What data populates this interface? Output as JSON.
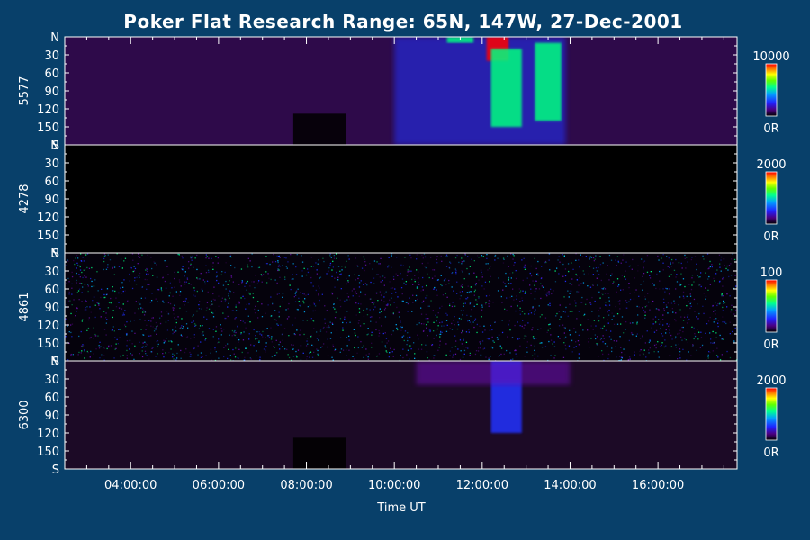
{
  "chart_data": {
    "type": "heatmap",
    "title": "Poker Flat Research Range: 65N, 147W, 27-Dec-2001",
    "xlabel": "Time UT",
    "x_tick_labels": [
      "04:00:00",
      "06:00:00",
      "08:00:00",
      "10:00:00",
      "12:00:00",
      "14:00:00",
      "16:00:00"
    ],
    "x_tick_hours": [
      4,
      6,
      8,
      10,
      12,
      14,
      16
    ],
    "x_range_hours": [
      2.5,
      17.8
    ],
    "y_tick_labels": [
      "N",
      "30",
      "60",
      "90",
      "120",
      "150",
      "S"
    ],
    "y_tick_values": [
      0,
      30,
      60,
      90,
      120,
      150,
      180
    ],
    "y_range": [
      0,
      180
    ],
    "colorscale": [
      "#000000",
      "#3a005a",
      "#6a10b0",
      "#2030ff",
      "#00b0ff",
      "#00ff80",
      "#b0ff00",
      "#ffff00",
      "#ff8000",
      "#ff0000"
    ],
    "panels": [
      {
        "label": "5577",
        "cb_max_label": "10000",
        "cb_min_label": "0R",
        "background": "#2e0a4a",
        "features": [
          {
            "t0": 7.7,
            "t1": 8.9,
            "y0": 128,
            "y1": 180,
            "intensity": 0.0,
            "kind": "dark-block"
          },
          {
            "t0": 10.0,
            "t1": 13.9,
            "y0": 0,
            "y1": 180,
            "intensity": 0.35,
            "kind": "glow"
          },
          {
            "t0": 11.2,
            "t1": 11.8,
            "y0": 0,
            "y1": 10,
            "intensity": 0.55,
            "kind": "arc"
          },
          {
            "t0": 12.1,
            "t1": 12.6,
            "y0": 0,
            "y1": 40,
            "intensity": 0.95,
            "kind": "peak"
          },
          {
            "t0": 12.2,
            "t1": 12.9,
            "y0": 20,
            "y1": 150,
            "intensity": 0.6,
            "kind": "band"
          },
          {
            "t0": 13.2,
            "t1": 13.8,
            "y0": 10,
            "y1": 140,
            "intensity": 0.5,
            "kind": "band"
          }
        ]
      },
      {
        "label": "4278",
        "cb_max_label": "2000",
        "cb_min_label": "0R",
        "background": "#000000",
        "features": []
      },
      {
        "label": "4861",
        "cb_max_label": "100",
        "cb_min_label": "0R",
        "background": "#05020c",
        "features": [
          {
            "t0": 2.5,
            "t1": 17.8,
            "y0": 0,
            "y1": 180,
            "intensity": 0.5,
            "kind": "speckle"
          }
        ]
      },
      {
        "label": "6300",
        "cb_max_label": "2000",
        "cb_min_label": "0R",
        "background": "#1c0a26",
        "features": [
          {
            "t0": 7.7,
            "t1": 8.9,
            "y0": 128,
            "y1": 180,
            "intensity": 0.0,
            "kind": "dark-block"
          },
          {
            "t0": 12.2,
            "t1": 12.9,
            "y0": 0,
            "y1": 120,
            "intensity": 0.3,
            "kind": "band"
          },
          {
            "t0": 10.5,
            "t1": 14.0,
            "y0": 0,
            "y1": 40,
            "intensity": 0.18,
            "kind": "glow"
          }
        ]
      }
    ]
  }
}
